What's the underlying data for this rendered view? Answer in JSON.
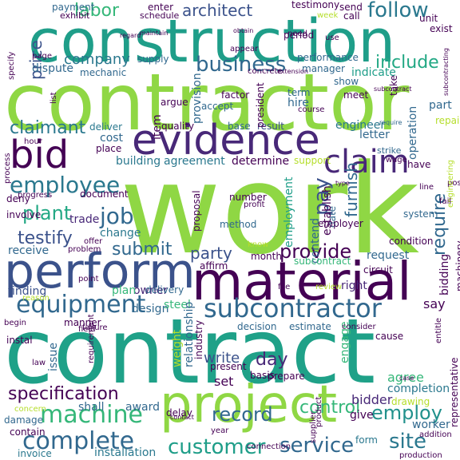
{
  "title": "",
  "words": [
    {
      "text": "work",
      "color": "#8fd744"
    },
    {
      "text": "contract",
      "color": "#1fa188"
    },
    {
      "text": "contractor",
      "color": "#8fd744"
    },
    {
      "text": "construction",
      "color": "#1f9e89"
    },
    {
      "text": "material",
      "color": "#440154"
    },
    {
      "text": "perform",
      "color": "#3b528b"
    },
    {
      "text": "project",
      "color": "#8fd744"
    },
    {
      "text": "evidence",
      "color": "#482878"
    },
    {
      "text": "bid",
      "color": "#440154"
    },
    {
      "text": "subcontractor",
      "color": "#31688e"
    },
    {
      "text": "equipment",
      "color": "#31688e"
    },
    {
      "text": "claim",
      "color": "#482878"
    },
    {
      "text": "employee",
      "color": "#2a788e"
    },
    {
      "text": "machine",
      "color": "#35b779"
    },
    {
      "text": "complete",
      "color": "#31688e"
    },
    {
      "text": "specification",
      "color": "#440154"
    },
    {
      "text": "customer",
      "color": "#1f9e89"
    },
    {
      "text": "service",
      "color": "#31688e"
    },
    {
      "text": "record",
      "color": "#31688e"
    },
    {
      "text": "control",
      "color": "#35b779"
    },
    {
      "text": "employ",
      "color": "#21918c"
    },
    {
      "text": "site",
      "color": "#2a788e"
    },
    {
      "text": "business",
      "color": "#31688e"
    },
    {
      "text": "provide",
      "color": "#440154"
    },
    {
      "text": "company",
      "color": "#2a788e"
    },
    {
      "text": "architect",
      "color": "#3b528b"
    },
    {
      "text": "labor",
      "color": "#35b779"
    },
    {
      "text": "follow",
      "color": "#2a788e"
    },
    {
      "text": "include",
      "color": "#22a884"
    },
    {
      "text": "claimant",
      "color": "#2a788e"
    },
    {
      "text": "job",
      "color": "#31688e"
    },
    {
      "text": "plant",
      "color": "#22a884"
    },
    {
      "text": "testify",
      "color": "#3b528b"
    },
    {
      "text": "submit",
      "color": "#31688e"
    },
    {
      "text": "party",
      "color": "#3b528b"
    },
    {
      "text": "day",
      "color": "#482878"
    },
    {
      "text": "pay",
      "color": "#3b528b"
    },
    {
      "text": "furnish",
      "color": "#31688e"
    },
    {
      "text": "require",
      "color": "#31688e"
    },
    {
      "text": "price",
      "color": "#3b528b"
    },
    {
      "text": "trade",
      "color": "#482878"
    },
    {
      "text": "change",
      "color": "#2a788e"
    },
    {
      "text": "receive",
      "color": "#31688e"
    },
    {
      "text": "owner",
      "color": "#482878"
    },
    {
      "text": "plan",
      "color": "#35b779"
    },
    {
      "text": "design",
      "color": "#31688e"
    },
    {
      "text": "finding",
      "color": "#3b528b"
    },
    {
      "text": "building",
      "color": "#2a788e"
    },
    {
      "text": "agreement",
      "color": "#2a788e"
    },
    {
      "text": "determine",
      "color": "#440154"
    },
    {
      "text": "employment",
      "color": "#1f9e89"
    },
    {
      "text": "engineer",
      "color": "#2a788e"
    },
    {
      "text": "write",
      "color": "#3b528b"
    },
    {
      "text": "set",
      "color": "#440154"
    },
    {
      "text": "agree",
      "color": "#35b779"
    },
    {
      "text": "bidder",
      "color": "#482878"
    },
    {
      "text": "issue",
      "color": "#31688e"
    },
    {
      "text": "shall",
      "color": "#31688e"
    },
    {
      "text": "award",
      "color": "#31688e"
    },
    {
      "text": "give",
      "color": "#440154"
    },
    {
      "text": "installation",
      "color": "#2a788e"
    },
    {
      "text": "form",
      "color": "#2a788e"
    },
    {
      "text": "completion",
      "color": "#2a788e"
    },
    {
      "text": "drawing",
      "color": "#b5de2b"
    },
    {
      "text": "worker",
      "color": "#31688e"
    },
    {
      "text": "invoice",
      "color": "#2a788e"
    },
    {
      "text": "mechanic",
      "color": "#31688e"
    },
    {
      "text": "dispute",
      "color": "#31688e"
    },
    {
      "text": "supply",
      "color": "#31688e"
    },
    {
      "text": "performance",
      "color": "#31688e"
    },
    {
      "text": "indicate",
      "color": "#1f9e89"
    },
    {
      "text": "show",
      "color": "#31688e"
    },
    {
      "text": "term",
      "color": "#31688e"
    },
    {
      "text": "hire",
      "color": "#31688e"
    },
    {
      "text": "meet",
      "color": "#440154"
    },
    {
      "text": "part",
      "color": "#31688e"
    },
    {
      "text": "accept",
      "color": "#31688e"
    },
    {
      "text": "result",
      "color": "#3b528b"
    },
    {
      "text": "deliver",
      "color": "#2a788e"
    },
    {
      "text": "cost",
      "color": "#31688e"
    },
    {
      "text": "quality",
      "color": "#440154"
    },
    {
      "text": "base",
      "color": "#31688e"
    },
    {
      "text": "letter",
      "color": "#31688e"
    },
    {
      "text": "strike",
      "color": "#31688e"
    },
    {
      "text": "support",
      "color": "#b5de2b"
    },
    {
      "text": "date",
      "color": "#31688e"
    },
    {
      "text": "contend",
      "color": "#31688e"
    },
    {
      "text": "system",
      "color": "#31688e"
    },
    {
      "text": "request",
      "color": "#31688e"
    },
    {
      "text": "subcontract",
      "color": "#35b779"
    },
    {
      "text": "right",
      "color": "#482878"
    },
    {
      "text": "steel",
      "color": "#35b779"
    },
    {
      "text": "delivery",
      "color": "#31688e"
    },
    {
      "text": "method",
      "color": "#31688e"
    },
    {
      "text": "number",
      "color": "#440154"
    },
    {
      "text": "affirm",
      "color": "#440154"
    },
    {
      "text": "month",
      "color": "#440154"
    },
    {
      "text": "estimate",
      "color": "#31688e"
    },
    {
      "text": "decision",
      "color": "#31688e"
    },
    {
      "text": "basis",
      "color": "#440154"
    },
    {
      "text": "present",
      "color": "#440154"
    },
    {
      "text": "prepare",
      "color": "#440154"
    },
    {
      "text": "engage",
      "color": "#35b779"
    },
    {
      "text": "delay",
      "color": "#440154"
    },
    {
      "text": "damage",
      "color": "#31688e"
    },
    {
      "text": "contain",
      "color": "#440154"
    },
    {
      "text": "payment",
      "color": "#31688e"
    },
    {
      "text": "exhibit",
      "color": "#440154"
    },
    {
      "text": "enter",
      "color": "#440154"
    },
    {
      "text": "schedule",
      "color": "#440154"
    },
    {
      "text": "testimony",
      "color": "#440154"
    },
    {
      "text": "send",
      "color": "#440154"
    },
    {
      "text": "week",
      "color": "#b5de2b"
    },
    {
      "text": "call",
      "color": "#440154"
    },
    {
      "text": "unit",
      "color": "#440154"
    },
    {
      "text": "exist",
      "color": "#440154"
    },
    {
      "text": "period",
      "color": "#440154"
    },
    {
      "text": "manager",
      "color": "#31688e"
    },
    {
      "text": "factor",
      "color": "#440154"
    },
    {
      "text": "concrete",
      "color": "#440154"
    },
    {
      "text": "argue",
      "color": "#440154"
    },
    {
      "text": "hour",
      "color": "#440154"
    },
    {
      "text": "place",
      "color": "#440154"
    },
    {
      "text": "deny",
      "color": "#440154"
    },
    {
      "text": "involve",
      "color": "#440154"
    },
    {
      "text": "problem",
      "color": "#440154"
    },
    {
      "text": "document",
      "color": "#440154"
    },
    {
      "text": "reason",
      "color": "#b5de2b"
    },
    {
      "text": "manner",
      "color": "#440154"
    },
    {
      "text": "instal",
      "color": "#440154"
    },
    {
      "text": "operation",
      "color": "#31688e"
    },
    {
      "text": "repair",
      "color": "#b5de2b"
    },
    {
      "text": "condition",
      "color": "#440154"
    },
    {
      "text": "circuit",
      "color": "#440154"
    },
    {
      "text": "employer",
      "color": "#440154"
    },
    {
      "text": "bidding",
      "color": "#440154"
    },
    {
      "text": "machinery",
      "color": "#440154"
    },
    {
      "text": "say",
      "color": "#440154"
    },
    {
      "text": "review",
      "color": "#b5de2b"
    },
    {
      "text": "item",
      "color": "#440154"
    },
    {
      "text": "provision",
      "color": "#31688e"
    },
    {
      "text": "list",
      "color": "#440154"
    },
    {
      "text": "relationship",
      "color": "#31688e"
    },
    {
      "text": "industry",
      "color": "#440154"
    },
    {
      "text": "weight",
      "color": "#b5de2b"
    },
    {
      "text": "president",
      "color": "#440154"
    },
    {
      "text": "establish",
      "color": "#440154"
    },
    {
      "text": "proposal",
      "color": "#440154"
    },
    {
      "text": "cause",
      "color": "#440154"
    },
    {
      "text": "representative",
      "color": "#440154"
    },
    {
      "text": "entitle",
      "color": "#440154"
    },
    {
      "text": "position",
      "color": "#440154"
    },
    {
      "text": "production",
      "color": "#440154"
    },
    {
      "text": "addition",
      "color": "#440154"
    },
    {
      "text": "process",
      "color": "#440154"
    },
    {
      "text": "specify",
      "color": "#440154"
    },
    {
      "text": "take",
      "color": "#440154"
    },
    {
      "text": "have",
      "color": "#440154"
    },
    {
      "text": "appear",
      "color": "#440154"
    },
    {
      "text": "page",
      "color": "#440154"
    },
    {
      "text": "use",
      "color": "#440154"
    },
    {
      "text": "file",
      "color": "#440154"
    },
    {
      "text": "know",
      "color": "#b5de2b"
    },
    {
      "text": "point",
      "color": "#440154"
    },
    {
      "text": "offer",
      "color": "#440154"
    },
    {
      "text": "progress",
      "color": "#440154"
    },
    {
      "text": "wage",
      "color": "#440154"
    },
    {
      "text": "engineering",
      "color": "#b5de2b"
    },
    {
      "text": "line",
      "color": "#440154"
    },
    {
      "text": "fail",
      "color": "#440154"
    },
    {
      "text": "requirement",
      "color": "#440154"
    },
    {
      "text": "field",
      "color": "#440154"
    },
    {
      "text": "failure",
      "color": "#440154"
    },
    {
      "text": "law",
      "color": "#440154"
    },
    {
      "text": "product",
      "color": "#440154"
    },
    {
      "text": "supplier",
      "color": "#440154"
    },
    {
      "text": "connection",
      "color": "#440154"
    },
    {
      "text": "concern",
      "color": "#b5de2b"
    },
    {
      "text": "need",
      "color": "#440154"
    },
    {
      "text": "course",
      "color": "#440154"
    },
    {
      "text": "extension",
      "color": "#440154"
    },
    {
      "text": "subcontracting",
      "color": "#440154"
    },
    {
      "text": "type",
      "color": "#440154"
    },
    {
      "text": "contact",
      "color": "#440154"
    },
    {
      "text": "year",
      "color": "#440154"
    },
    {
      "text": "profit",
      "color": "#440154"
    },
    {
      "text": "begin",
      "color": "#440154"
    },
    {
      "text": "consider",
      "color": "#440154"
    },
    {
      "text": "maintain",
      "color": "#440154"
    },
    {
      "text": "regard",
      "color": "#440154"
    },
    {
      "text": "obtain",
      "color": "#440154"
    },
    {
      "text": "require",
      "color": "#31688e"
    },
    {
      "text": "subcontract",
      "color": "#440154"
    },
    {
      "text": "case",
      "color": "#440154"
    }
  ]
}
